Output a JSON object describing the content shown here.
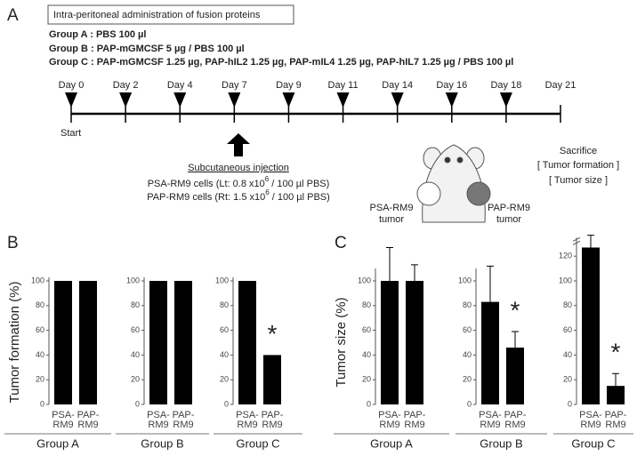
{
  "panel_a": {
    "letter": "A",
    "title": "Intra-peritoneal administration of fusion proteins",
    "groups": [
      "Group A :  PBS 100 µl",
      "Group B :  PAP-mGMCSF 5 µg  /  PBS 100 µl",
      "Group C :  PAP-mGMCSF 1.25 µg, PAP-hIL2 1.25 µg, PAP-mIL4 1.25 µg, PAP-hIL7 1.25 µg  /  PBS 100 µl"
    ],
    "days": [
      "Day 0",
      "Day 2",
      "Day 4",
      "Day 7",
      "Day 9",
      "Day 11",
      "Day 14",
      "Day 16",
      "Day 18",
      "Day 21"
    ],
    "start": "Start",
    "end": [
      "Sacrifice",
      "[ Tumor formation ]",
      "[ Tumor size ]"
    ],
    "injection": {
      "title": "Subcutaneous injection",
      "cells": [
        [
          "PSA-RM9 cells (Lt: 0.8 x10",
          "6",
          " / 100 µl PBS)"
        ],
        [
          "PAP-RM9 cells (Rt: 1.5 x10",
          "6",
          " / 100 µl PBS)"
        ]
      ]
    },
    "tumors": [
      [
        "PSA-RM9",
        "tumor"
      ],
      [
        "PAP-RM9",
        "tumor"
      ]
    ]
  },
  "panel_letters": [
    "B",
    "C"
  ],
  "chart_data": [
    {
      "type": "bar",
      "ylabel": "Tumor formation (%)",
      "xlabel": "Group A",
      "categories": [
        [
          "PSA-",
          "RM9"
        ],
        [
          "PAP-",
          "RM9"
        ]
      ],
      "values": [
        100,
        100
      ],
      "color": "#000000",
      "ylim": [
        0,
        103
      ],
      "yticks": [
        0,
        20,
        40,
        60,
        80,
        100
      ]
    },
    {
      "type": "bar",
      "xlabel": "Group B",
      "categories": [
        [
          "PSA-",
          "RM9"
        ],
        [
          "PAP-",
          "RM9"
        ]
      ],
      "values": [
        100,
        100
      ],
      "color": "#000000",
      "ylim": [
        0,
        103
      ],
      "yticks": [
        0,
        20,
        40,
        60,
        80,
        100
      ]
    },
    {
      "type": "bar",
      "xlabel": "Group C",
      "annotation": "*",
      "categories": [
        [
          "PSA-",
          "RM9"
        ],
        [
          "PAP-",
          "RM9"
        ]
      ],
      "values": [
        100,
        40
      ],
      "color": "#000000",
      "ylim": [
        0,
        103
      ],
      "yticks": [
        0,
        20,
        40,
        60,
        80,
        100
      ]
    },
    {
      "type": "bar",
      "ylabel": "Tumor size (%)",
      "xlabel": "Group A",
      "categories": [
        [
          "PSA-",
          "RM9"
        ],
        [
          "PAP-",
          "RM9"
        ]
      ],
      "values": [
        100,
        100
      ],
      "errors": [
        27,
        13
      ],
      "color": "#000000",
      "ylim": [
        0,
        110
      ],
      "yticks": [
        0,
        20,
        40,
        60,
        80,
        100
      ]
    },
    {
      "type": "bar",
      "xlabel": "Group B",
      "annotation": "*",
      "categories": [
        [
          "PSA-",
          "RM9"
        ],
        [
          "PAP-",
          "RM9"
        ]
      ],
      "values": [
        83,
        46
      ],
      "errors": [
        29,
        13
      ],
      "color": "#000000",
      "ylim": [
        0,
        110
      ],
      "yticks": [
        0,
        20,
        40,
        60,
        80,
        100
      ]
    },
    {
      "type": "bar",
      "xlabel": "Group C",
      "annotation": "*",
      "axis_break": true,
      "categories": [
        [
          "PSA-",
          "RM9"
        ],
        [
          "PAP-",
          "RM9"
        ]
      ],
      "values": [
        127,
        15
      ],
      "errors": [
        10,
        10
      ],
      "color": "#000000",
      "ylim": [
        0,
        135
      ],
      "yticks": [
        0,
        20,
        40,
        60,
        80,
        100,
        120
      ]
    }
  ]
}
